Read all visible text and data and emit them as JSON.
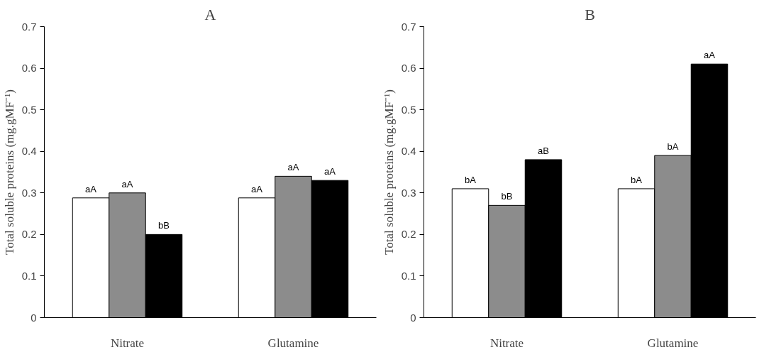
{
  "chart_data": [
    {
      "type": "bar",
      "title": "A",
      "ylabel": "Total soluble proteins (mg.gMF⁻¹)",
      "categories": [
        "Nitrate",
        "Glutamine"
      ],
      "ylim": [
        0,
        0.7
      ],
      "yticks": [
        0,
        0.1,
        0.2,
        0.3,
        0.4,
        0.5,
        0.6,
        0.7
      ],
      "grid": false,
      "series": [
        {
          "color": "#ffffff",
          "values": [
            0.288,
            0.288
          ],
          "value_labels": [
            "aA",
            "aA"
          ]
        },
        {
          "color": "#8c8c8c",
          "values": [
            0.3,
            0.34
          ],
          "value_labels": [
            "aA",
            "aA"
          ]
        },
        {
          "color": "#000000",
          "values": [
            0.2,
            0.33
          ],
          "value_labels": [
            "bB",
            "aA"
          ]
        }
      ]
    },
    {
      "type": "bar",
      "title": "B",
      "ylabel": "Total soluble proteins (mg.gMF⁻¹)",
      "categories": [
        "Nitrate",
        "Glutamine"
      ],
      "ylim": [
        0,
        0.7
      ],
      "yticks": [
        0,
        0.1,
        0.2,
        0.3,
        0.4,
        0.5,
        0.6,
        0.7
      ],
      "grid": false,
      "series": [
        {
          "color": "#ffffff",
          "values": [
            0.31,
            0.31
          ],
          "value_labels": [
            "bA",
            "bA"
          ]
        },
        {
          "color": "#8c8c8c",
          "values": [
            0.27,
            0.39
          ],
          "value_labels": [
            "bB",
            "bA"
          ]
        },
        {
          "color": "#000000",
          "values": [
            0.38,
            0.61
          ],
          "value_labels": [
            "aB",
            "aA"
          ]
        }
      ]
    }
  ]
}
